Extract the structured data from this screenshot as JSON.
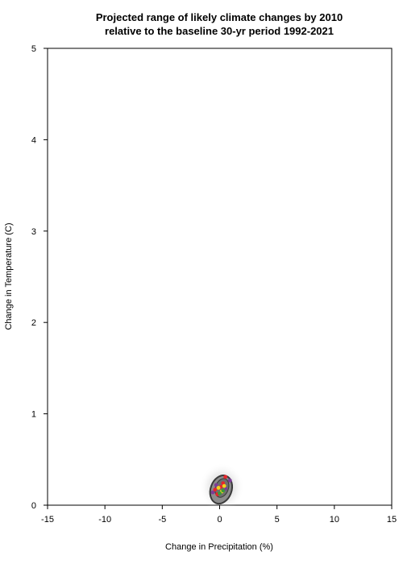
{
  "chart_data": {
    "type": "scatter",
    "title": [
      "Projected range of likely climate changes by 2010",
      "relative to the baseline 30-yr period 1992-2021"
    ],
    "xlabel": "Change in Precipitation (%)",
    "ylabel": "Change in Temperature (C)",
    "xlim": [
      -15,
      15
    ],
    "ylim": [
      0,
      5
    ],
    "xticks": [
      "-15",
      "-10",
      "-5",
      "0",
      "5",
      "10",
      "15"
    ],
    "yticks": [
      "0",
      "1",
      "2",
      "3",
      "4",
      "5"
    ],
    "grid": false,
    "legend": "none",
    "colors": {
      "density_outer": "#8c8c8c",
      "density_mid": "#6e6e6e",
      "contour": "#3a3a3a",
      "point_purple": "#7d3c98",
      "point_red": "#e8252b",
      "point_yellow": "#f2d21b",
      "point_green": "#3a9a3a"
    },
    "series": [
      {
        "color": "point_purple",
        "points": [
          [
            -0.6,
            0.14
          ],
          [
            0.9,
            0.27
          ],
          [
            -0.3,
            0.22
          ],
          [
            0.5,
            0.18
          ]
        ]
      },
      {
        "color": "point_red",
        "points": [
          [
            0.5,
            0.31
          ],
          [
            -0.2,
            0.12
          ],
          [
            0.3,
            0.24
          ],
          [
            -0.4,
            0.17
          ],
          [
            0.1,
            0.2
          ]
        ]
      },
      {
        "color": "point_yellow",
        "points": [
          [
            0.2,
            0.15
          ],
          [
            -0.1,
            0.19
          ],
          [
            0.4,
            0.21
          ]
        ]
      },
      {
        "color": "point_green",
        "points": [
          [
            0.0,
            0.13
          ],
          [
            0.3,
            0.16
          ]
        ]
      }
    ]
  }
}
